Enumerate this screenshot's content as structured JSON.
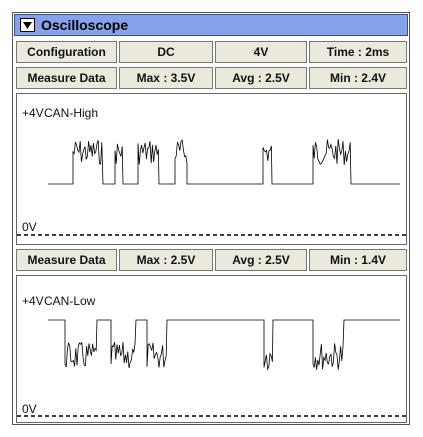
{
  "title": "Oscilloscope",
  "configuration": {
    "label": "Configuration",
    "coupling": "DC",
    "scale": "4V",
    "time": "Time : 2ms"
  },
  "channels": [
    {
      "measure_label": "Measure Data",
      "max": "Max : 3.5V",
      "avg": "Avg : 2.5V",
      "min": "Min : 2.4V",
      "top_label": "+4V",
      "name": "CAN-High",
      "bottom_label": "0V"
    },
    {
      "measure_label": "Measure Data",
      "max": "Max : 2.5V",
      "avg": "Avg : 2.5V",
      "min": "Min : 1.4V",
      "top_label": "+4V",
      "name": "CAN-Low",
      "bottom_label": "0V"
    }
  ]
}
